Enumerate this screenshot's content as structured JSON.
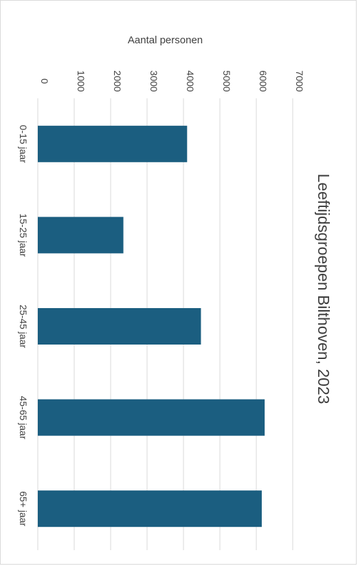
{
  "chart_data": {
    "type": "bar",
    "orientation": "rotated 90 degrees clockwise",
    "title": "Leeftijdsgroepen Bilthoven, 2023",
    "xlabel": "",
    "ylabel": "Aantal personen",
    "categories": [
      "0-15 jaar",
      "15-25 jaar",
      "25-45 jaar",
      "45-65 jaar",
      "65+ jaar"
    ],
    "values": [
      4100,
      2350,
      4480,
      6230,
      6150
    ],
    "ylim": [
      0,
      7000
    ],
    "yticks": [
      "0",
      "1000",
      "2000",
      "3000",
      "4000",
      "5000",
      "6000",
      "7000"
    ],
    "grid": true,
    "legend": "none",
    "colors": {
      "bar": "#1B5E80",
      "grid": "#d9d9d9",
      "text": "#404040"
    }
  }
}
